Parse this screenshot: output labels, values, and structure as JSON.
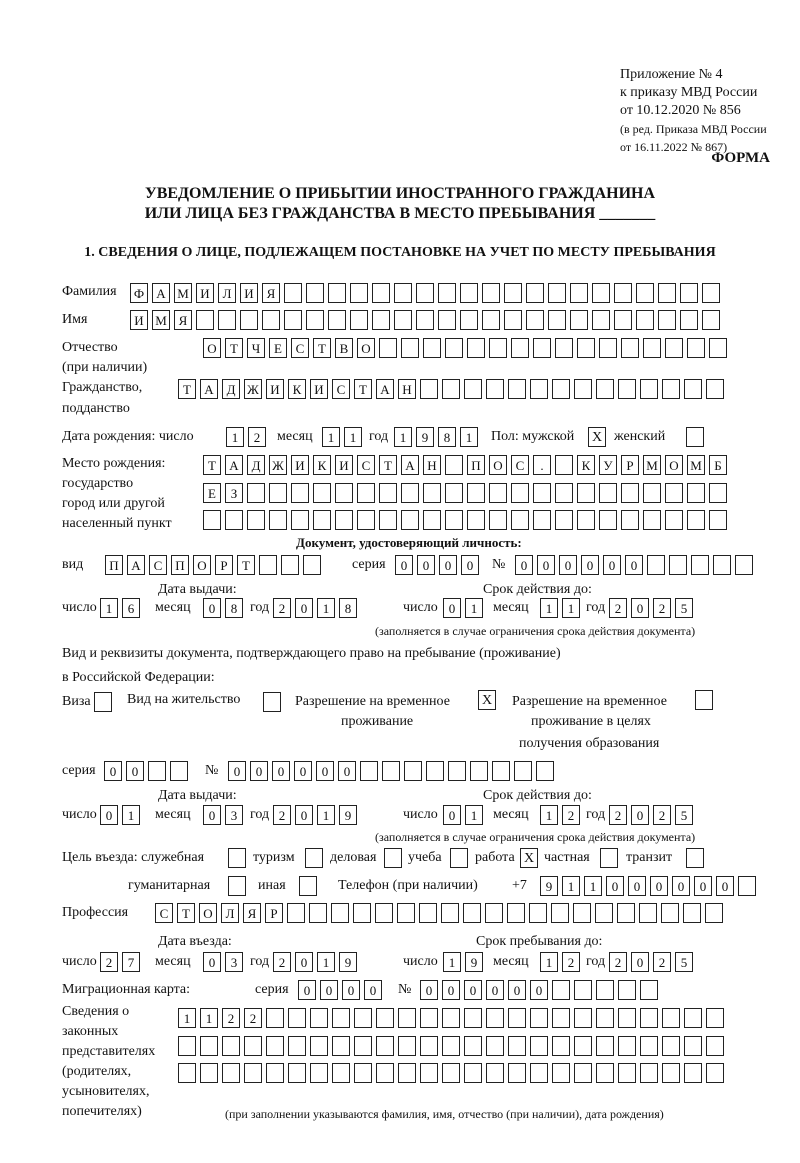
{
  "header": {
    "appendix": "Приложение № 4",
    "order": "к приказу МВД России",
    "order_date": "от 10.12.2020 № 856",
    "edition1": "(в ред. Приказа МВД России",
    "edition2": "от 16.11.2022 № 867)",
    "form": "ФОРМА",
    "title1": "УВЕДОМЛЕНИЕ О ПРИБЫТИИ ИНОСТРАННОГО ГРАЖДАНИНА",
    "title2": "ИЛИ ЛИЦА БЕЗ ГРАЖДАНСТВА В МЕСТО ПРЕБЫВАНИЯ _______",
    "section1": "1. СВЕДЕНИЯ О ЛИЦЕ, ПОДЛЕЖАЩЕМ ПОСТАНОВКЕ НА УЧЕТ ПО МЕСТУ ПРЕБЫВАНИЯ"
  },
  "labels": {
    "surname": "Фамилия",
    "name": "Имя",
    "patronymic": "Отчество",
    "patronymic2": "(при наличии)",
    "citizenship": "Гражданство,",
    "citizenship2": "подданство",
    "birth_date": "Дата рождения:  число",
    "month": "месяц",
    "year": "год",
    "sex": "Пол: мужской",
    "female": "женский",
    "birthplace1": "Место рождения:",
    "birthplace2": "государство",
    "birthplace3": "город или другой",
    "birthplace4": "населенный пункт",
    "id_doc": "Документ, удостоверяющий личность:",
    "kind": "вид",
    "series": "серия",
    "number": "№",
    "issue_date": "Дата выдачи:",
    "valid_until": "Срок действия до:",
    "day": "число",
    "validity_note": "(заполняется в случае ограничения срока действия документа)",
    "right_doc1": "Вид и реквизиты документа, подтверждающего право на пребывание (проживание)",
    "right_doc2": "в Российской Федерации:",
    "visa": "Виза",
    "residence": "Вид на жительство",
    "trp1": "Разрешение на временное",
    "trp2": "проживание",
    "trpe1": "Разрешение на временное",
    "trpe2": "проживание в целях",
    "trpe3": "получения образования",
    "purpose": "Цель въезда: служебная",
    "tourism": "туризм",
    "business": "деловая",
    "study": "учеба",
    "work": "работа",
    "private": "частная",
    "transit": "транзит",
    "humanitarian": "гуманитарная",
    "other": "иная",
    "phone": "Телефон (при наличии)",
    "phone_prefix": "+7",
    "profession": "Профессия",
    "entry_date": "Дата въезда:",
    "stay_until": "Срок пребывания до:",
    "migration_card": "Миграционная карта:",
    "reps1": "Сведения о",
    "reps2": "законных",
    "reps3": "представителях",
    "reps4": "(родителях,",
    "reps5": "усыновителях,",
    "reps6": "попечителях)",
    "reps_note": "(при заполнении указываются фамилия, имя, отчество (при наличии), дата рождения)"
  },
  "fields": {
    "surname": "ФАМИЛИЯ",
    "name": "ИМЯ",
    "patronymic": "ОТЧЕСТВО",
    "citizenship": "ТАДЖИКИСТАН",
    "birth_day": "12",
    "birth_month": "11",
    "birth_year": "1981",
    "sex_male": "X",
    "sex_female": "",
    "birthplace_line1": "ТАДЖИКИСТАН ПОС. КУРМОМБ",
    "birthplace_line2": "ЕЗ",
    "birthplace_line3": "",
    "doc_kind": "ПАСПОРТ",
    "doc_series": "0000",
    "doc_number": "000000",
    "doc_issue_day": "16",
    "doc_issue_month": "08",
    "doc_issue_year": "2018",
    "doc_valid_day": "01",
    "doc_valid_month": "11",
    "doc_valid_year": "2025",
    "visa": "",
    "residence_permit": "",
    "temp_residence": "X",
    "temp_residence_edu": "",
    "rp_series": "00",
    "rp_number": "000000",
    "rp_issue_day": "01",
    "rp_issue_month": "03",
    "rp_issue_year": "2019",
    "rp_valid_day": "01",
    "rp_valid_month": "12",
    "rp_valid_year": "2025",
    "purpose_official": "",
    "purpose_tourism": "",
    "purpose_business": "",
    "purpose_study": "",
    "purpose_work": "X",
    "purpose_private": "",
    "purpose_transit": "",
    "purpose_humanitarian": "",
    "purpose_other": "",
    "phone": "911000000",
    "profession": "СТОЛЯР",
    "entry_day": "27",
    "entry_month": "03",
    "entry_year": "2019",
    "stay_day": "19",
    "stay_month": "12",
    "stay_year": "2025",
    "mc_series": "0000",
    "mc_number": "000000",
    "reps_line1": "1122",
    "reps_line2": "",
    "reps_line3": ""
  }
}
